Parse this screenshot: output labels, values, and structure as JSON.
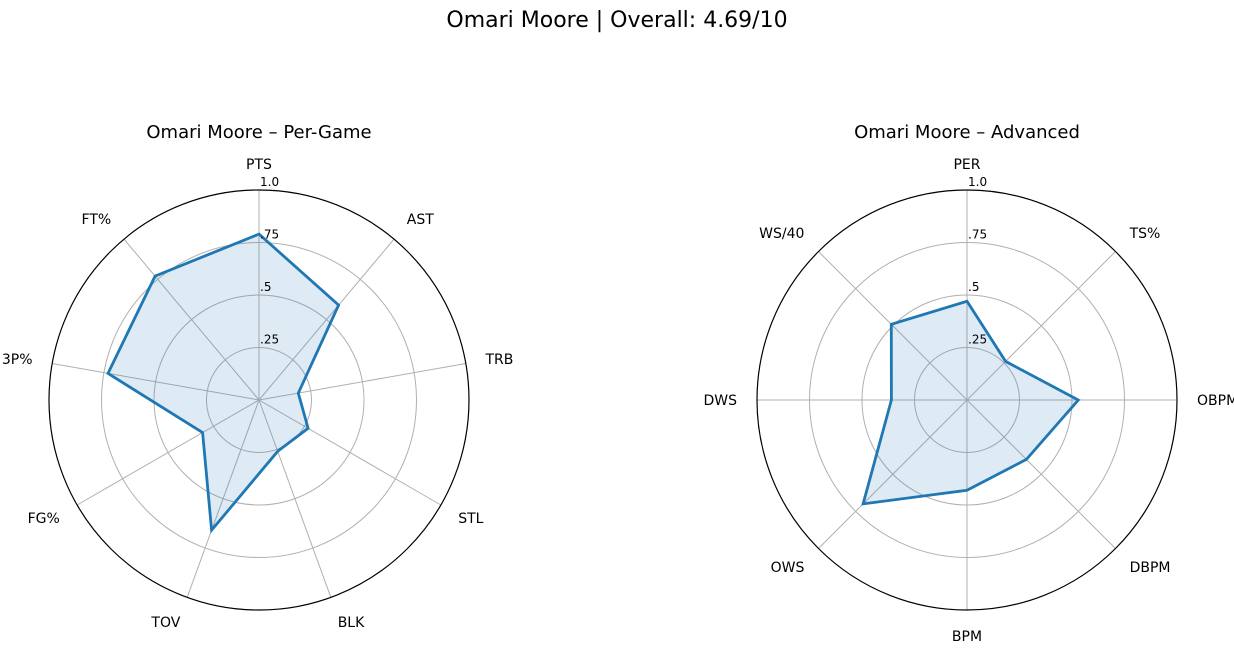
{
  "suptitle": "Omari Moore | Overall: 4.69/10",
  "colors": {
    "line": "#1f77b4",
    "fill": "#1f77b4"
  },
  "chart_data": [
    {
      "type": "radar",
      "title": "Omari Moore – Per-Game",
      "categories": [
        "PTS",
        "AST",
        "TRB",
        "STL",
        "BLK",
        "TOV",
        "FG%",
        "3P%",
        "FT%"
      ],
      "values": [
        0.79,
        0.59,
        0.19,
        0.27,
        0.26,
        0.66,
        0.31,
        0.73,
        0.77
      ],
      "rlim": [
        0,
        1
      ],
      "rticks": [
        0.25,
        0.5,
        0.75,
        1.0
      ],
      "rtick_labels": [
        ".25",
        ".5",
        ".75",
        "1.0"
      ],
      "grid": true
    },
    {
      "type": "radar",
      "title": "Omari Moore – Advanced",
      "categories": [
        "PER",
        "TS%",
        "OBPM",
        "DBPM",
        "BPM",
        "OWS",
        "DWS",
        "WS/40"
      ],
      "values": [
        0.47,
        0.26,
        0.53,
        0.4,
        0.43,
        0.7,
        0.36,
        0.51
      ],
      "rlim": [
        0,
        1
      ],
      "rticks": [
        0.25,
        0.5,
        0.75,
        1.0
      ],
      "rtick_labels": [
        ".25",
        ".5",
        ".75",
        "1.0"
      ],
      "grid": true
    }
  ]
}
